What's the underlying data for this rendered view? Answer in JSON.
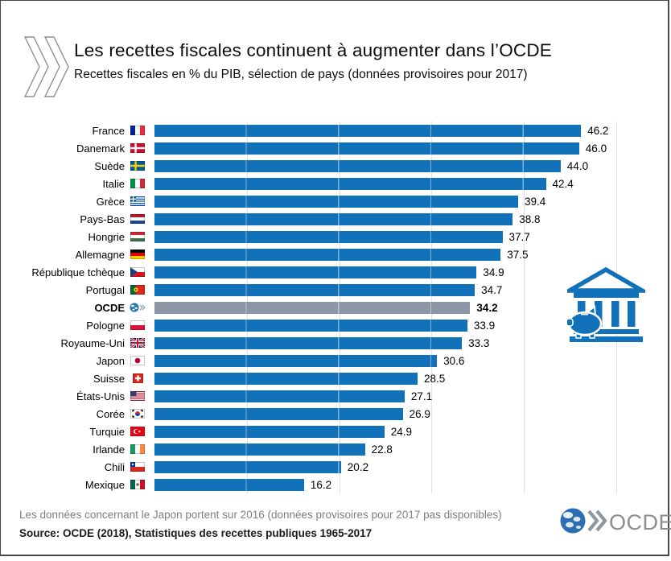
{
  "header": {
    "title": "Les recettes fiscales continuent à augmenter dans l’OCDE",
    "subtitle": "Recettes fiscales en % du PIB, sélection de pays (données provisoires pour 2017)",
    "logo_icon": "oecd-double-chevron-icon"
  },
  "chart_data": {
    "type": "bar",
    "orientation": "horizontal",
    "title": "Les recettes fiscales continuent à augmenter dans l’OCDE",
    "subtitle": "Recettes fiscales en % du PIB, sélection de pays (données provisoires pour 2017)",
    "unit": "% du PIB",
    "xlim": [
      0,
      50
    ],
    "gridlines": [
      10,
      20,
      30,
      40,
      50
    ],
    "grid": true,
    "legend": false,
    "bar_color": "#1172BA",
    "highlight_color": "#8C96A6",
    "highlight_category": "OCDE",
    "categories": [
      "France",
      "Danemark",
      "Suède",
      "Italie",
      "Grèce",
      "Pays-Bas",
      "Hongrie",
      "Allemagne",
      "République tchèque",
      "Portugal",
      "OCDE",
      "Pologne",
      "Royaume-Uni",
      "Japon",
      "Suisse",
      "États-Unis",
      "Corée",
      "Turquie",
      "Irlande",
      "Chili",
      "Mexique"
    ],
    "values": [
      46.2,
      46.0,
      44.0,
      42.4,
      39.4,
      38.8,
      37.7,
      37.5,
      34.9,
      34.7,
      34.2,
      33.9,
      33.3,
      30.6,
      28.5,
      27.1,
      26.9,
      24.9,
      22.8,
      20.2,
      16.2
    ],
    "rows": [
      {
        "label": "France",
        "value": 46.2,
        "flag_icon": "flag-france",
        "highlight": false
      },
      {
        "label": "Danemark",
        "value": 46.0,
        "flag_icon": "flag-denmark",
        "highlight": false
      },
      {
        "label": "Suède",
        "value": 44.0,
        "flag_icon": "flag-sweden",
        "highlight": false
      },
      {
        "label": "Italie",
        "value": 42.4,
        "flag_icon": "flag-italy",
        "highlight": false
      },
      {
        "label": "Grèce",
        "value": 39.4,
        "flag_icon": "flag-greece",
        "highlight": false
      },
      {
        "label": "Pays-Bas",
        "value": 38.8,
        "flag_icon": "flag-netherlands",
        "highlight": false
      },
      {
        "label": "Hongrie",
        "value": 37.7,
        "flag_icon": "flag-hungary",
        "highlight": false
      },
      {
        "label": "Allemagne",
        "value": 37.5,
        "flag_icon": "flag-germany",
        "highlight": false
      },
      {
        "label": "République tchèque",
        "value": 34.9,
        "flag_icon": "flag-czech-republic",
        "highlight": false
      },
      {
        "label": "Portugal",
        "value": 34.7,
        "flag_icon": "flag-portugal",
        "highlight": false
      },
      {
        "label": "OCDE",
        "value": 34.2,
        "flag_icon": "oecd-globe-mini-icon",
        "highlight": true
      },
      {
        "label": "Pologne",
        "value": 33.9,
        "flag_icon": "flag-poland",
        "highlight": false
      },
      {
        "label": "Royaume-Uni",
        "value": 33.3,
        "flag_icon": "flag-united-kingdom",
        "highlight": false
      },
      {
        "label": "Japon",
        "value": 30.6,
        "flag_icon": "flag-japan",
        "highlight": false
      },
      {
        "label": "Suisse",
        "value": 28.5,
        "flag_icon": "flag-switzerland",
        "highlight": false
      },
      {
        "label": "États-Unis",
        "value": 27.1,
        "flag_icon": "flag-united-states",
        "highlight": false
      },
      {
        "label": "Corée",
        "value": 26.9,
        "flag_icon": "flag-south-korea",
        "highlight": false
      },
      {
        "label": "Turquie",
        "value": 24.9,
        "flag_icon": "flag-turkey",
        "highlight": false
      },
      {
        "label": "Irlande",
        "value": 22.8,
        "flag_icon": "flag-ireland",
        "highlight": false
      },
      {
        "label": "Chili",
        "value": 20.2,
        "flag_icon": "flag-chile",
        "highlight": false
      },
      {
        "label": "Mexique",
        "value": 16.2,
        "flag_icon": "flag-mexico",
        "highlight": false
      }
    ]
  },
  "illustration": {
    "icon": "bank-piggy-bank-icon",
    "color": "#1172BA"
  },
  "footer": {
    "note": "Les données concernant le Japon portent sur 2016 (données provisoires pour 2017 pas disponibles)",
    "source": "Source: OCDE (2018), Statistiques des recettes publiques 1965-2017",
    "logo_text": "OCDE",
    "logo_icon": "oecd-globe-logo-icon"
  },
  "colors": {
    "bar": "#1172BA",
    "ocde_bar": "#8C96A6",
    "grid": "#E2E2E2",
    "note_text": "#7F7F7F"
  }
}
